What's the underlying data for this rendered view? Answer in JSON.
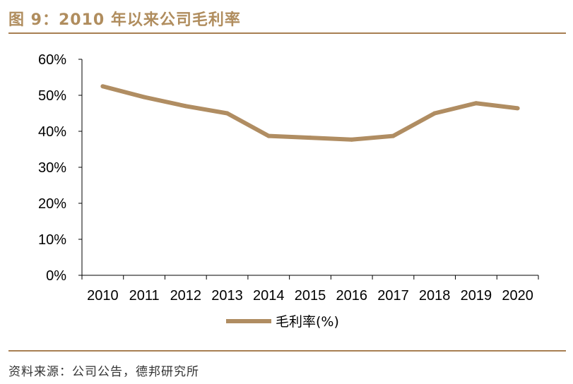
{
  "figure": {
    "title": "图 9：2010 年以来公司毛利率",
    "source": "资料来源：公司公告，德邦研究所"
  },
  "colors": {
    "series": "#b08d62",
    "rule": "#a87f52",
    "title": "#b08d5e",
    "axis": "#000000"
  },
  "chart_data": {
    "type": "line",
    "title": "",
    "xlabel": "",
    "ylabel": "",
    "x": [
      "2010",
      "2011",
      "2012",
      "2013",
      "2014",
      "2015",
      "2016",
      "2017",
      "2018",
      "2019",
      "2020"
    ],
    "ylim": [
      0,
      60
    ],
    "yticks": [
      0,
      10,
      20,
      30,
      40,
      50,
      60
    ],
    "ytick_labels": [
      "0%",
      "10%",
      "20%",
      "30%",
      "40%",
      "50%",
      "60%"
    ],
    "series": [
      {
        "name": "毛利率(%)",
        "values": [
          52.5,
          49.5,
          47.0,
          45.0,
          38.7,
          38.2,
          37.7,
          38.7,
          45.0,
          47.8,
          46.4
        ]
      }
    ],
    "grid": false,
    "legend_position": "bottom"
  }
}
